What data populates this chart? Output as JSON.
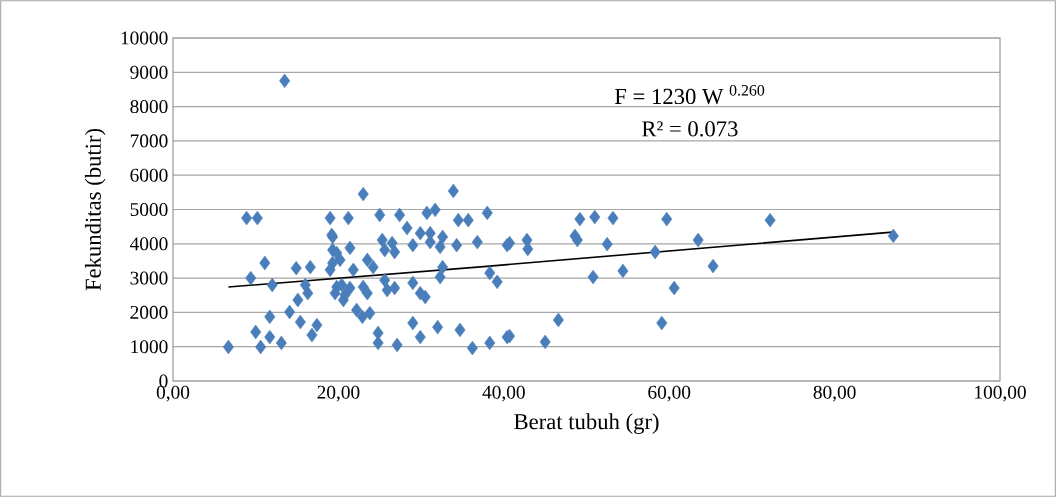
{
  "chart_data": {
    "type": "scatter",
    "xlabel": "Berat tubuh (gr)",
    "ylabel": "Fekunditas (butir)",
    "annotations": [
      "F = 1230 W $^{0.260}$",
      "R² = 0.073"
    ],
    "xlim": [
      0,
      100
    ],
    "ylim": [
      0,
      10000
    ],
    "xticks": [
      {
        "value": 0,
        "label": "0,00"
      },
      {
        "value": 20,
        "label": "20,00"
      },
      {
        "value": 40,
        "label": "40,00"
      },
      {
        "value": 60,
        "label": "60,00"
      },
      {
        "value": 80,
        "label": "80,00"
      },
      {
        "value": 100,
        "label": "100,00"
      }
    ],
    "yticks": [
      0,
      1000,
      2000,
      3000,
      4000,
      5000,
      6000,
      7000,
      8000,
      9000,
      10000
    ],
    "grid": "y",
    "series": [
      {
        "color": "#4a7ebb",
        "marker": "diamond",
        "x": [
          6.7,
          8.9,
          10.2,
          9.4,
          11.1,
          12.0,
          11.7,
          10.0,
          11.7,
          10.6,
          13.1,
          13.5,
          14.1,
          14.9,
          15.1,
          15.4,
          16.0,
          16.3,
          16.6,
          16.8,
          17.4,
          19.0,
          19.3,
          19.8,
          19.3,
          19.6,
          20.6,
          20.4,
          23.0,
          33.9,
          21.2,
          25.0,
          27.4,
          30.7,
          31.7,
          34.5,
          35.7,
          38.0,
          19.2,
          28.3,
          29.9,
          31.1,
          32.6,
          34.3,
          36.8,
          40.4,
          25.3,
          26.5,
          25.6,
          26.8,
          29.0,
          31.1,
          32.3,
          19.3,
          21.4,
          20.2,
          23.5,
          24.2,
          19.0,
          21.8,
          32.6,
          32.3,
          38.3,
          39.2,
          19.8,
          21.4,
          23.0,
          25.6,
          26.8,
          29.0,
          29.9,
          30.5,
          20.8,
          23.5,
          25.9,
          22.2,
          23.8,
          22.9,
          29.0,
          32.0,
          34.7,
          38.3,
          36.2,
          29.9,
          24.8,
          24.8,
          27.1,
          40.4,
          40.7,
          42.8,
          42.9,
          49.2,
          51.0,
          53.2,
          48.6,
          48.9,
          52.5,
          58.3,
          59.7,
          63.5,
          72.2,
          87.1,
          50.8,
          54.4,
          65.3,
          60.6,
          46.6,
          45.0,
          40.7,
          59.1
        ],
        "values": [
          990,
          4750,
          4750,
          3000,
          3440,
          2800,
          1870,
          1430,
          1280,
          990,
          1110,
          8750,
          2010,
          3290,
          2360,
          1720,
          2800,
          2560,
          3320,
          1340,
          1630,
          4750,
          4200,
          3730,
          3440,
          2560,
          2360,
          2800,
          5450,
          5540,
          4750,
          4840,
          4840,
          4900,
          4990,
          4690,
          4690,
          4900,
          4260,
          4460,
          4310,
          4310,
          4200,
          3960,
          4050,
          3960,
          4110,
          4020,
          3820,
          3760,
          3960,
          4050,
          3910,
          3820,
          3880,
          3530,
          3530,
          3320,
          3240,
          3240,
          3320,
          3030,
          3150,
          2890,
          2740,
          2710,
          2740,
          2940,
          2710,
          2860,
          2560,
          2450,
          2510,
          2560,
          2650,
          2070,
          1980,
          1870,
          1690,
          1570,
          1490,
          1110,
          960,
          1280,
          1400,
          1110,
          1050,
          1280,
          4020,
          4110,
          3850,
          4720,
          4780,
          4750,
          4230,
          4110,
          3990,
          3760,
          4720,
          4110,
          4690,
          4230,
          3030,
          3210,
          3350,
          2710,
          1780,
          1140,
          1310,
          1690
        ]
      },
      {
        "type": "line",
        "marker": "none",
        "color": "#000000",
        "x": [
          6.7,
          38.3,
          87.0
        ],
        "values": [
          2740,
          3350,
          4340
        ]
      }
    ]
  }
}
